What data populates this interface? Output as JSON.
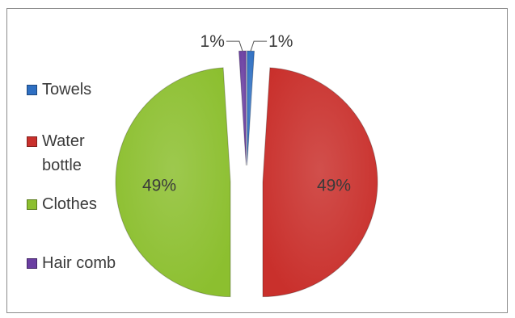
{
  "chart_data": {
    "type": "pie",
    "title": "",
    "legend_placement": "left",
    "slices": [
      {
        "label": "Towels",
        "value": 1,
        "display": "1%",
        "color": "#2e6fc2"
      },
      {
        "label": "Water bottle",
        "value": 49,
        "display": "49%",
        "color": "#c9302c"
      },
      {
        "label": "Clothes",
        "value": 49,
        "display": "49%",
        "color": "#8cbf2f"
      },
      {
        "label": "Hair comb",
        "value": 1,
        "display": "1%",
        "color": "#6a3ea1"
      }
    ]
  },
  "legend": {
    "items": [
      {
        "label": "Towels"
      },
      {
        "label": "Water\nbottle"
      },
      {
        "label": "Clothes"
      },
      {
        "label": "Hair comb"
      }
    ]
  }
}
